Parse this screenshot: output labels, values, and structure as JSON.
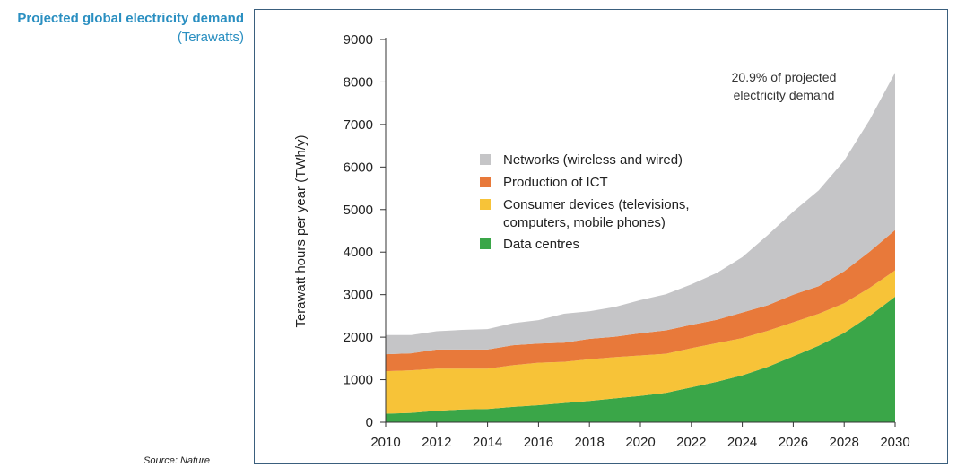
{
  "header": {
    "title_main": "Projected global electricity demand",
    "title_unit": "(Terawatts)"
  },
  "source": "Source: Nature",
  "colors": {
    "networks": "#c5c5c7",
    "production": "#e8793a",
    "consumer": "#f7c338",
    "datacentres": "#3aa648",
    "title": "#2a8fc1",
    "frame": "#3a5f7d"
  },
  "chart_data": {
    "type": "area",
    "stacked": true,
    "xlabel": "",
    "ylabel": "Terawatt hours per year (TWh/y)",
    "xlim": [
      2010,
      2030
    ],
    "ylim": [
      0,
      9000
    ],
    "yticks": [
      0,
      1000,
      2000,
      3000,
      4000,
      5000,
      6000,
      7000,
      8000,
      9000
    ],
    "xticks": [
      2010,
      2012,
      2014,
      2016,
      2018,
      2020,
      2022,
      2024,
      2026,
      2028,
      2030
    ],
    "annotation": "20.9% of projected electricity demand",
    "x": [
      2010,
      2011,
      2012,
      2013,
      2014,
      2015,
      2016,
      2017,
      2018,
      2019,
      2020,
      2021,
      2022,
      2023,
      2024,
      2025,
      2026,
      2027,
      2028,
      2029,
      2030
    ],
    "series": [
      {
        "name": "Data centres",
        "key": "datacentres",
        "values": [
          200,
          220,
          270,
          300,
          310,
          360,
          400,
          450,
          500,
          560,
          620,
          690,
          820,
          950,
          1100,
          1300,
          1550,
          1800,
          2100,
          2500,
          2950
        ]
      },
      {
        "name": "Consumer devices (televisions, computers, mobile phones)",
        "key": "consumer",
        "values": [
          1000,
          1000,
          990,
          960,
          950,
          980,
          1000,
          970,
          980,
          970,
          950,
          920,
          920,
          910,
          880,
          850,
          800,
          750,
          700,
          660,
          620
        ]
      },
      {
        "name": "Production of ICT",
        "key": "production",
        "values": [
          400,
          400,
          450,
          450,
          450,
          470,
          450,
          450,
          480,
          480,
          520,
          550,
          550,
          550,
          600,
          600,
          650,
          650,
          750,
          850,
          950
        ]
      },
      {
        "name": "Networks (wireless and wired)",
        "key": "networks",
        "values": [
          450,
          430,
          430,
          460,
          480,
          520,
          550,
          680,
          650,
          700,
          780,
          850,
          950,
          1100,
          1300,
          1650,
          1950,
          2250,
          2600,
          3100,
          3700
        ]
      }
    ],
    "legend": [
      {
        "label": "Networks (wireless and wired)",
        "key": "networks"
      },
      {
        "label": "Production of ICT",
        "key": "production"
      },
      {
        "label": "Consumer devices (televisions,",
        "label2": "computers, mobile phones)",
        "key": "consumer"
      },
      {
        "label": "Data centres",
        "key": "datacentres"
      }
    ]
  }
}
